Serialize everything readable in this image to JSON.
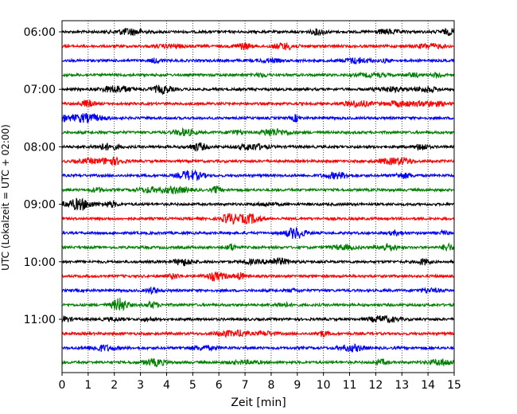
{
  "chart_data": {
    "type": "line",
    "title": "",
    "xlabel": "Zeit  [min]",
    "ylabel": "UTC (Lokalzeit = UTC + 02:00)",
    "xlim": [
      0,
      15
    ],
    "x_ticks": [
      "0",
      "1",
      "2",
      "3",
      "4",
      "5",
      "6",
      "7",
      "8",
      "9",
      "10",
      "11",
      "12",
      "13",
      "14",
      "15"
    ],
    "y_ticks": [
      "06:00",
      "07:00",
      "08:00",
      "09:00",
      "10:00",
      "11:00"
    ],
    "grid": "vertical dotted",
    "trace_interval_minutes": 15,
    "trace_colors": [
      "#000000",
      "#ff0000",
      "#0000ff",
      "#008000"
    ],
    "traces": [
      {
        "start": "06:00",
        "color": "#000000"
      },
      {
        "start": "06:15",
        "color": "#ff0000"
      },
      {
        "start": "06:30",
        "color": "#0000ff"
      },
      {
        "start": "06:45",
        "color": "#008000"
      },
      {
        "start": "07:00",
        "color": "#000000"
      },
      {
        "start": "07:15",
        "color": "#ff0000"
      },
      {
        "start": "07:30",
        "color": "#0000ff"
      },
      {
        "start": "07:45",
        "color": "#008000"
      },
      {
        "start": "08:00",
        "color": "#000000"
      },
      {
        "start": "08:15",
        "color": "#ff0000"
      },
      {
        "start": "08:30",
        "color": "#0000ff"
      },
      {
        "start": "08:45",
        "color": "#008000"
      },
      {
        "start": "09:00",
        "color": "#000000"
      },
      {
        "start": "09:15",
        "color": "#ff0000"
      },
      {
        "start": "09:30",
        "color": "#0000ff"
      },
      {
        "start": "09:45",
        "color": "#008000"
      },
      {
        "start": "10:00",
        "color": "#000000"
      },
      {
        "start": "10:15",
        "color": "#ff0000"
      },
      {
        "start": "10:30",
        "color": "#0000ff"
      },
      {
        "start": "10:45",
        "color": "#008000"
      },
      {
        "start": "11:00",
        "color": "#000000"
      },
      {
        "start": "11:15",
        "color": "#ff0000"
      },
      {
        "start": "11:30",
        "color": "#0000ff"
      },
      {
        "start": "11:45",
        "color": "#008000"
      }
    ]
  }
}
